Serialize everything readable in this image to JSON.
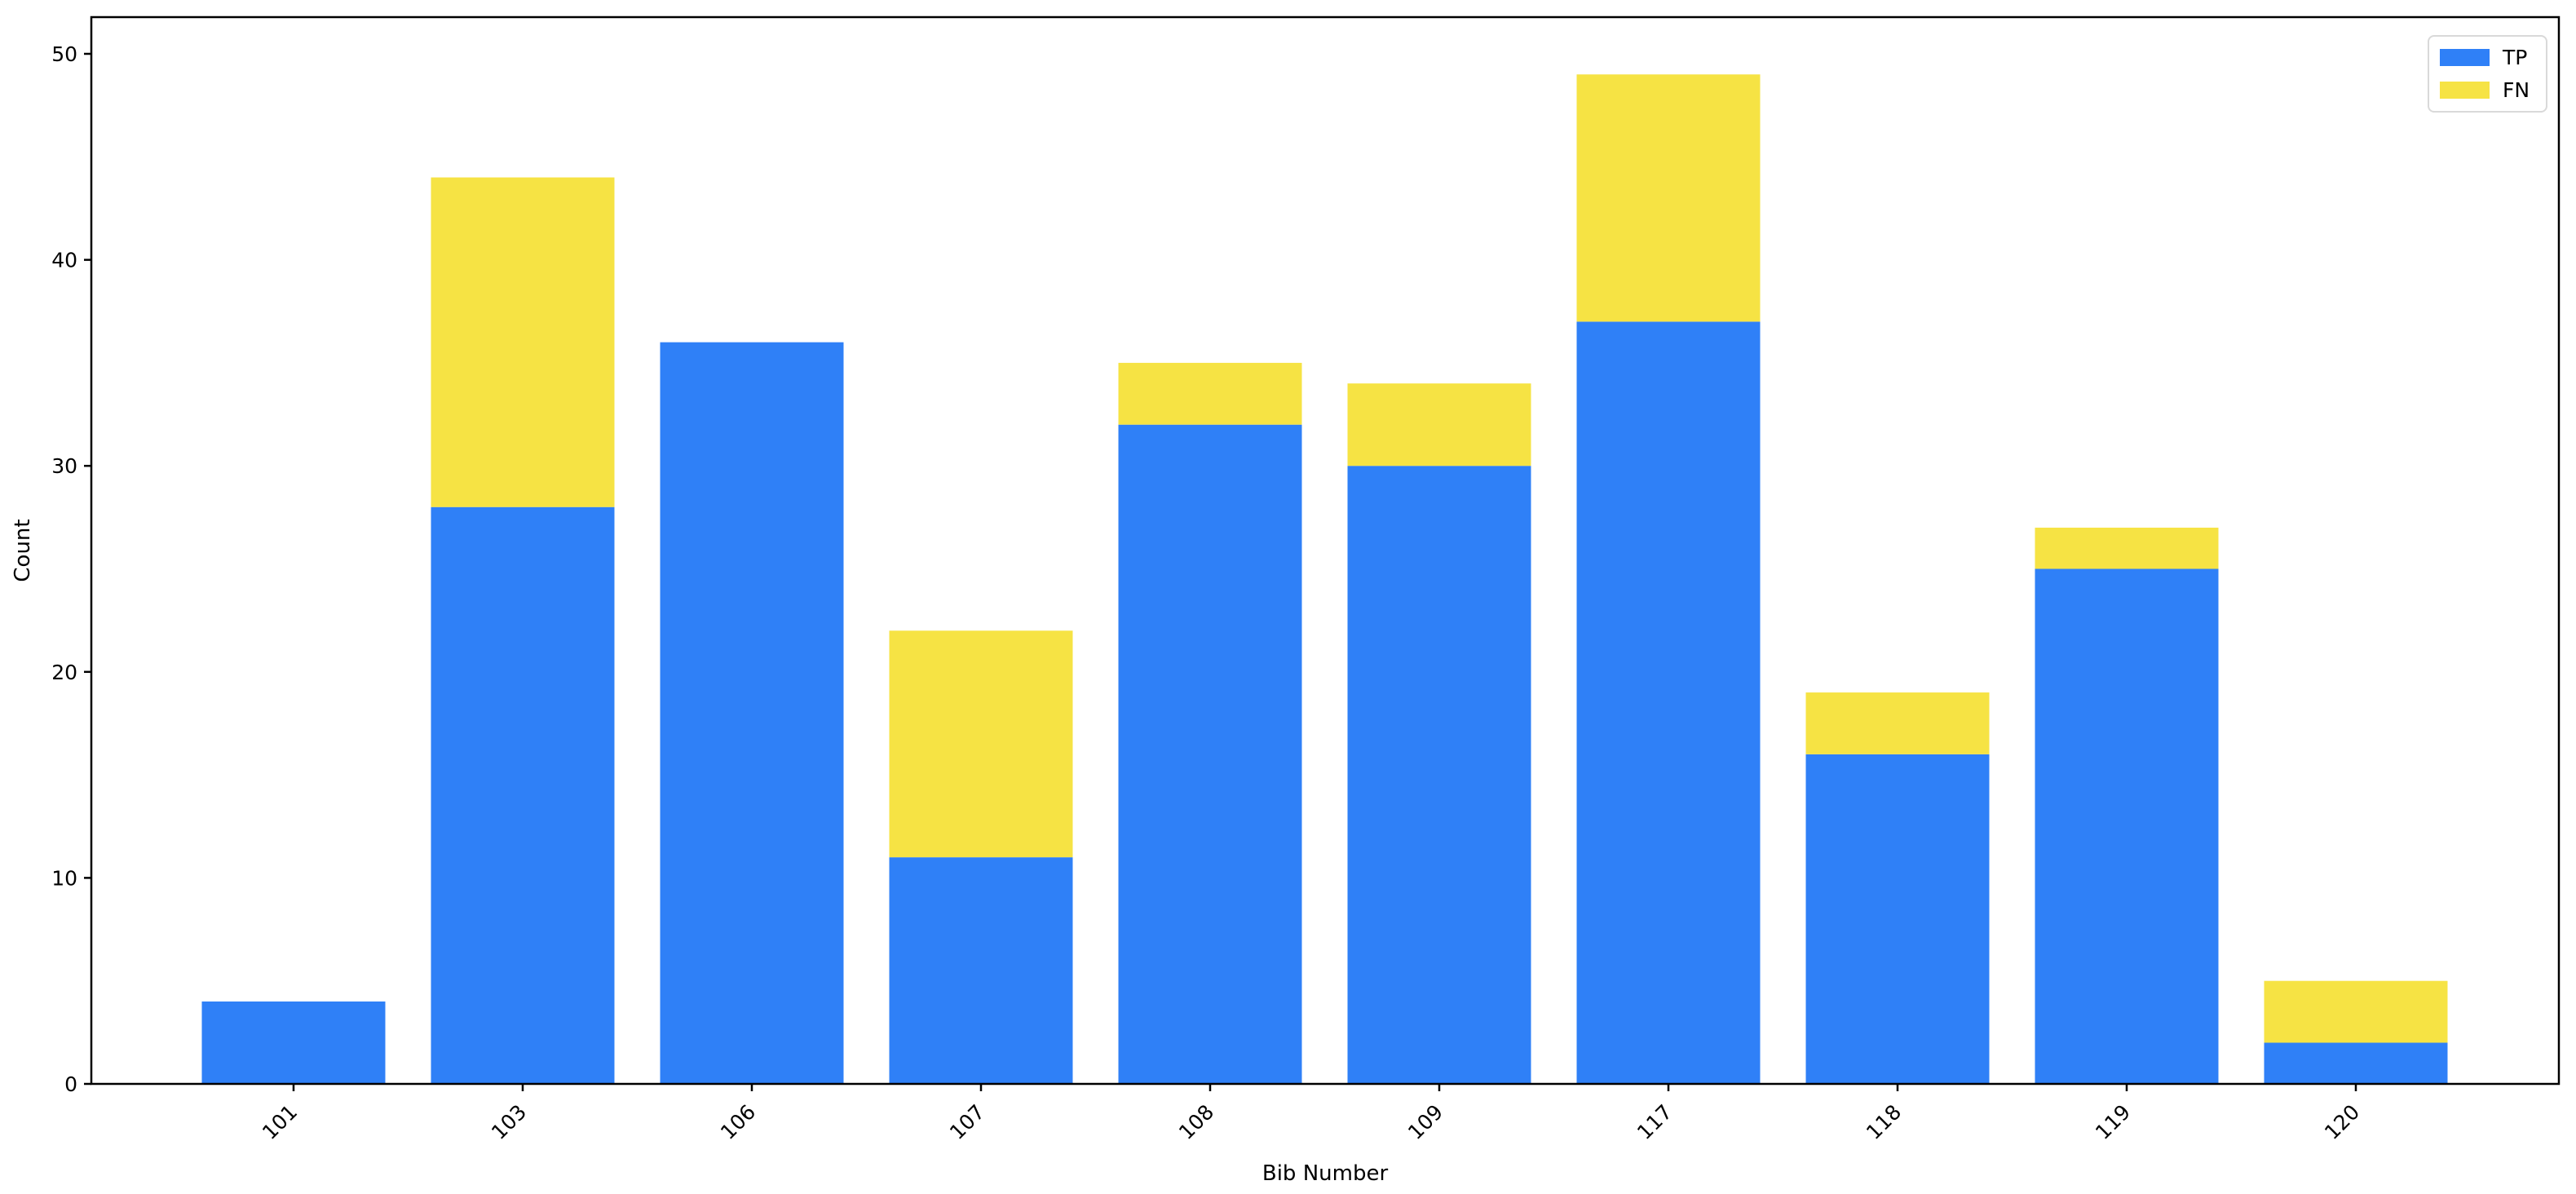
{
  "chart_data": {
    "type": "bar",
    "stacked": true,
    "title": "",
    "xlabel": "Bib Number",
    "ylabel": "Count",
    "categories": [
      "101",
      "103",
      "106",
      "107",
      "108",
      "109",
      "117",
      "118",
      "119",
      "120"
    ],
    "series": [
      {
        "name": "TP",
        "color": "#2f80f7",
        "values": [
          4,
          28,
          36,
          11,
          32,
          30,
          37,
          16,
          25,
          2
        ]
      },
      {
        "name": "FN",
        "color": "#f6e344",
        "values": [
          0,
          16,
          0,
          11,
          3,
          4,
          12,
          3,
          2,
          3
        ]
      }
    ],
    "stack_totals": [
      4,
      44,
      36,
      22,
      35,
      34,
      49,
      19,
      27,
      5
    ],
    "y_ticks": [
      0,
      10,
      20,
      30,
      40,
      50
    ],
    "ylim": [
      0,
      51.8
    ],
    "x_tick_rotation_deg": 45,
    "grid": false,
    "legend_position": "upper right",
    "axis_color": "#000000",
    "background_color": "#ffffff"
  }
}
